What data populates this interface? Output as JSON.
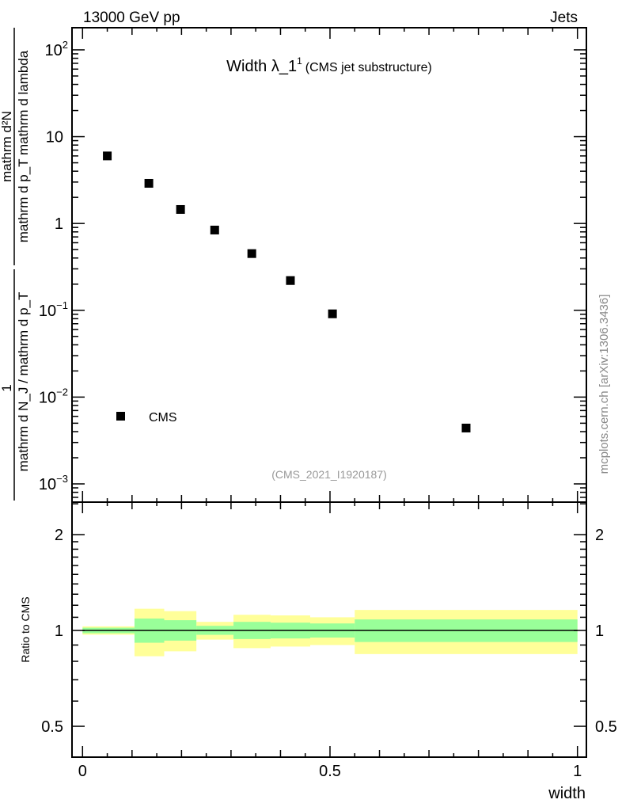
{
  "header": {
    "left": "13000 GeV pp",
    "right": "Jets"
  },
  "side_label": "mcplots.cern.ch [arXiv:1306.3436]",
  "chart_data": [
    {
      "type": "scatter",
      "title_main": "Width λ_1",
      "title_sup": "1",
      "title_sub": "(CMS jet substructure)",
      "watermark": "(CMS_2021_I1920187)",
      "ylabel": {
        "frac1_num": "1",
        "frac1_den": "mathrm d N_J / mathrm d p_T",
        "frac2_num": "mathrm d²N",
        "frac2_den": "mathrm d p_T mathrm d lambda"
      },
      "yscale": "log",
      "ylim_log10": [
        -3.21,
        2.255
      ],
      "xlim": [
        0,
        1
      ],
      "yticks": [
        {
          "v": 100,
          "label": "10",
          "sup": "2"
        },
        {
          "v": 10,
          "label": "10",
          "sup": ""
        },
        {
          "v": 1,
          "label": "1",
          "sup": ""
        },
        {
          "v": 0.1,
          "label": "10",
          "sup": "−1"
        },
        {
          "v": 0.01,
          "label": "10",
          "sup": "−2"
        },
        {
          "v": 0.001,
          "label": "10",
          "sup": "−3"
        }
      ],
      "legend": {
        "label": "CMS",
        "placement": "bottom-left"
      },
      "series": [
        {
          "name": "CMS",
          "x": [
            0.05,
            0.134,
            0.198,
            0.267,
            0.342,
            0.42,
            0.505,
            0.775
          ],
          "y": [
            6.0,
            2.9,
            1.45,
            0.84,
            0.45,
            0.22,
            0.091,
            0.0044
          ]
        }
      ]
    },
    {
      "type": "area",
      "ylabel": "Ratio to CMS",
      "xlabel": "width",
      "yscale": "log",
      "ylim": [
        0.4,
        2.53
      ],
      "xlim": [
        0,
        1
      ],
      "xticks": [
        {
          "v": 0,
          "label": "0"
        },
        {
          "v": 0.5,
          "label": "0.5"
        },
        {
          "v": 1,
          "label": "1"
        }
      ],
      "yticks": [
        {
          "v": 2,
          "label": "2"
        },
        {
          "v": 1,
          "label": "1"
        },
        {
          "v": 0.5,
          "label": "0.5"
        }
      ],
      "reference_line": 1,
      "bin_edges": [
        0,
        0.105,
        0.165,
        0.23,
        0.305,
        0.38,
        0.46,
        0.55,
        1.0
      ],
      "band_outer": {
        "color": "#ffff99",
        "upper": [
          1.03,
          1.17,
          1.15,
          1.064,
          1.12,
          1.115,
          1.1,
          1.16
        ],
        "lower": [
          0.97,
          0.83,
          0.86,
          0.936,
          0.88,
          0.89,
          0.9,
          0.843
        ]
      },
      "band_inner": {
        "color": "#99ff99",
        "upper": [
          1.02,
          1.09,
          1.077,
          1.034,
          1.064,
          1.058,
          1.052,
          1.083
        ],
        "lower": [
          0.98,
          0.915,
          0.929,
          0.969,
          0.94,
          0.944,
          0.95,
          0.92
        ]
      }
    }
  ]
}
